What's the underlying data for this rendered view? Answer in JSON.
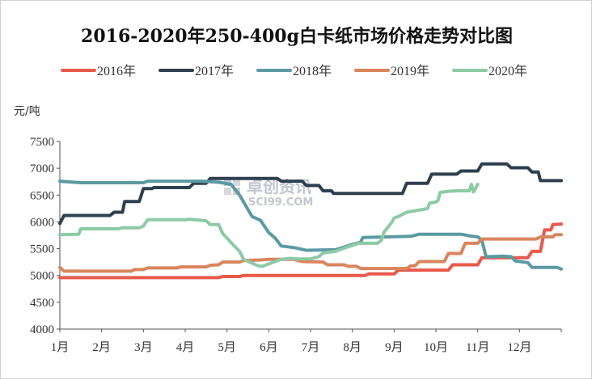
{
  "chart_data": {
    "type": "line",
    "title": "2016-2020年250-400g白卡纸市场价格走势对比图",
    "ylabel": "元/吨",
    "xlabel": "",
    "ylim": [
      4000,
      7500
    ],
    "y_ticks": [
      "4000",
      "4500",
      "5000",
      "5500",
      "6000",
      "6500",
      "7000",
      "7500"
    ],
    "x_range": [
      1,
      13
    ],
    "categories": [
      "1月",
      "2月",
      "3月",
      "4月",
      "5月",
      "6月",
      "7月",
      "8月",
      "9月",
      "10月",
      "11月",
      "12月"
    ],
    "grid": false,
    "legend_position": "top",
    "series": [
      {
        "name": "2016年",
        "color": "#e8594a",
        "points": [
          [
            1.0,
            4960
          ],
          [
            4.8,
            4960
          ],
          [
            4.9,
            4980
          ],
          [
            5.3,
            4980
          ],
          [
            5.4,
            5000
          ],
          [
            8.3,
            5000
          ],
          [
            8.4,
            5030
          ],
          [
            9.0,
            5030
          ],
          [
            9.1,
            5100
          ],
          [
            10.3,
            5100
          ],
          [
            10.4,
            5200
          ],
          [
            11.0,
            5200
          ],
          [
            11.1,
            5330
          ],
          [
            12.2,
            5330
          ],
          [
            12.3,
            5450
          ],
          [
            12.5,
            5450
          ],
          [
            12.55,
            5650
          ],
          [
            12.6,
            5850
          ],
          [
            12.75,
            5850
          ],
          [
            12.8,
            5950
          ],
          [
            13.0,
            5960
          ]
        ]
      },
      {
        "name": "2017年",
        "color": "#2e3f4f",
        "points": [
          [
            1.0,
            5970
          ],
          [
            1.1,
            6120
          ],
          [
            2.2,
            6120
          ],
          [
            2.3,
            6180
          ],
          [
            2.5,
            6180
          ],
          [
            2.55,
            6380
          ],
          [
            2.9,
            6380
          ],
          [
            3.0,
            6620
          ],
          [
            3.2,
            6620
          ],
          [
            3.25,
            6640
          ],
          [
            4.1,
            6640
          ],
          [
            4.2,
            6720
          ],
          [
            4.5,
            6720
          ],
          [
            4.6,
            6810
          ],
          [
            6.2,
            6810
          ],
          [
            6.3,
            6760
          ],
          [
            6.8,
            6760
          ],
          [
            6.9,
            6680
          ],
          [
            7.2,
            6680
          ],
          [
            7.3,
            6580
          ],
          [
            7.5,
            6580
          ],
          [
            7.55,
            6530
          ],
          [
            9.2,
            6530
          ],
          [
            9.3,
            6720
          ],
          [
            9.8,
            6720
          ],
          [
            9.9,
            6890
          ],
          [
            10.5,
            6890
          ],
          [
            10.6,
            6950
          ],
          [
            11.0,
            6950
          ],
          [
            11.1,
            7080
          ],
          [
            11.7,
            7080
          ],
          [
            11.8,
            7010
          ],
          [
            12.2,
            7010
          ],
          [
            12.3,
            6930
          ],
          [
            12.45,
            6930
          ],
          [
            12.5,
            6770
          ],
          [
            13.0,
            6770
          ]
        ]
      },
      {
        "name": "2018年",
        "color": "#5b9aa3",
        "points": [
          [
            1.0,
            6760
          ],
          [
            1.5,
            6730
          ],
          [
            3.0,
            6730
          ],
          [
            3.1,
            6760
          ],
          [
            4.4,
            6760
          ],
          [
            4.8,
            6740
          ],
          [
            5.1,
            6700
          ],
          [
            5.3,
            6500
          ],
          [
            5.6,
            6100
          ],
          [
            5.8,
            6030
          ],
          [
            6.0,
            5800
          ],
          [
            6.15,
            5700
          ],
          [
            6.3,
            5550
          ],
          [
            6.6,
            5520
          ],
          [
            6.9,
            5470
          ],
          [
            7.6,
            5480
          ],
          [
            7.8,
            5530
          ],
          [
            8.0,
            5580
          ],
          [
            8.2,
            5620
          ],
          [
            8.25,
            5710
          ],
          [
            9.4,
            5730
          ],
          [
            9.6,
            5770
          ],
          [
            10.6,
            5770
          ],
          [
            10.8,
            5740
          ],
          [
            11.0,
            5720
          ],
          [
            11.1,
            5660
          ],
          [
            11.2,
            5350
          ],
          [
            11.6,
            5360
          ],
          [
            11.8,
            5350
          ],
          [
            11.9,
            5270
          ],
          [
            12.2,
            5240
          ],
          [
            12.3,
            5150
          ],
          [
            12.9,
            5150
          ],
          [
            13.0,
            5120
          ]
        ]
      },
      {
        "name": "2019年",
        "color": "#d9855d",
        "points": [
          [
            1.0,
            5150
          ],
          [
            1.1,
            5080
          ],
          [
            2.7,
            5080
          ],
          [
            2.8,
            5110
          ],
          [
            3.0,
            5110
          ],
          [
            3.1,
            5140
          ],
          [
            3.8,
            5140
          ],
          [
            3.9,
            5160
          ],
          [
            4.5,
            5160
          ],
          [
            4.6,
            5190
          ],
          [
            4.8,
            5200
          ],
          [
            4.9,
            5250
          ],
          [
            5.3,
            5250
          ],
          [
            5.4,
            5280
          ],
          [
            5.8,
            5290
          ],
          [
            6.0,
            5300
          ],
          [
            6.6,
            5300
          ],
          [
            6.8,
            5260
          ],
          [
            7.3,
            5250
          ],
          [
            7.4,
            5200
          ],
          [
            7.8,
            5200
          ],
          [
            7.9,
            5170
          ],
          [
            8.1,
            5170
          ],
          [
            8.2,
            5130
          ],
          [
            9.3,
            5130
          ],
          [
            9.4,
            5180
          ],
          [
            9.5,
            5180
          ],
          [
            9.6,
            5260
          ],
          [
            10.2,
            5260
          ],
          [
            10.3,
            5410
          ],
          [
            10.6,
            5410
          ],
          [
            10.7,
            5600
          ],
          [
            11.0,
            5600
          ],
          [
            11.1,
            5680
          ],
          [
            12.4,
            5680
          ],
          [
            12.5,
            5720
          ],
          [
            12.8,
            5720
          ],
          [
            12.85,
            5760
          ],
          [
            13.0,
            5760
          ]
        ]
      },
      {
        "name": "2020年",
        "color": "#8dcaa5",
        "points": [
          [
            1.0,
            5760
          ],
          [
            1.45,
            5770
          ],
          [
            1.5,
            5870
          ],
          [
            2.4,
            5870
          ],
          [
            2.5,
            5890
          ],
          [
            2.9,
            5890
          ],
          [
            3.0,
            5920
          ],
          [
            3.1,
            6040
          ],
          [
            4.0,
            6040
          ],
          [
            4.1,
            6050
          ],
          [
            4.5,
            6020
          ],
          [
            4.6,
            5950
          ],
          [
            4.8,
            5950
          ],
          [
            4.9,
            5780
          ],
          [
            5.15,
            5570
          ],
          [
            5.3,
            5450
          ],
          [
            5.4,
            5300
          ],
          [
            5.6,
            5230
          ],
          [
            5.75,
            5180
          ],
          [
            5.85,
            5170
          ],
          [
            6.15,
            5260
          ],
          [
            6.3,
            5300
          ],
          [
            6.5,
            5320
          ],
          [
            6.7,
            5310
          ],
          [
            7.0,
            5310
          ],
          [
            7.2,
            5350
          ],
          [
            7.3,
            5420
          ],
          [
            7.6,
            5450
          ],
          [
            7.8,
            5510
          ],
          [
            8.0,
            5560
          ],
          [
            8.15,
            5600
          ],
          [
            8.6,
            5600
          ],
          [
            8.7,
            5660
          ],
          [
            8.75,
            5800
          ],
          [
            8.85,
            5900
          ],
          [
            8.95,
            6000
          ],
          [
            9.0,
            6070
          ],
          [
            9.1,
            6100
          ],
          [
            9.3,
            6180
          ],
          [
            9.6,
            6220
          ],
          [
            9.8,
            6250
          ],
          [
            9.85,
            6350
          ],
          [
            10.0,
            6370
          ],
          [
            10.05,
            6400
          ],
          [
            10.1,
            6550
          ],
          [
            10.3,
            6570
          ],
          [
            10.5,
            6580
          ],
          [
            10.8,
            6580
          ],
          [
            10.85,
            6700
          ],
          [
            10.9,
            6560
          ],
          [
            11.0,
            6700
          ]
        ]
      }
    ]
  },
  "watermark": {
    "cn_text": "卓创资讯",
    "en_text": "SCI99.COM"
  }
}
